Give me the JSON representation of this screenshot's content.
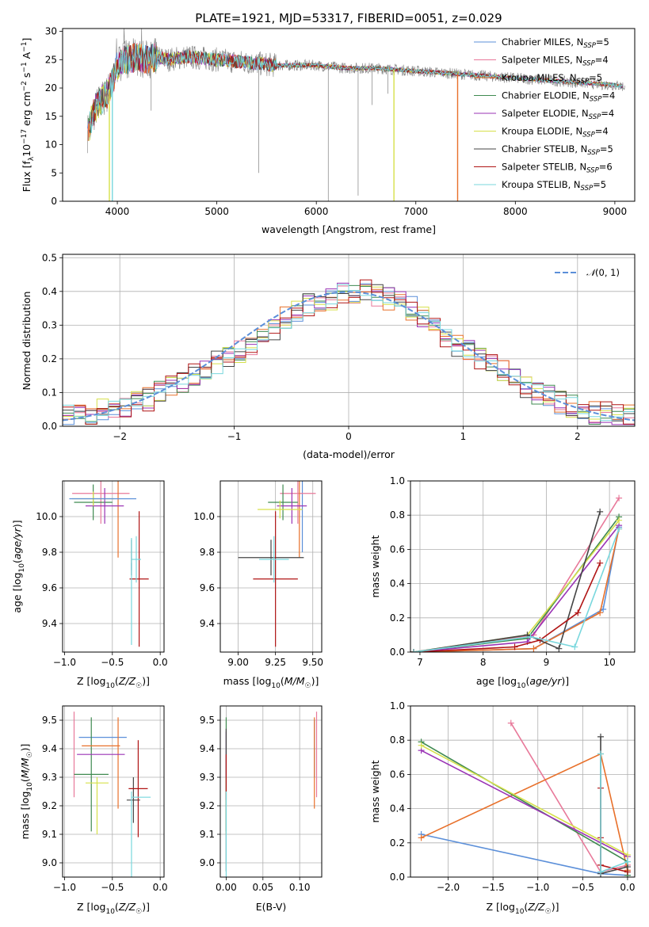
{
  "figure_title": "PLATE=1921, MJD=53317, FIBERID=0051, z=0.029",
  "colors": {
    "Chabrier MILES": "#5b8fd9",
    "Salpeter MILES": "#e8799a",
    "Kroupa MILES": "#e8702a",
    "Chabrier ELODIE": "#3f8a50",
    "Salpeter ELODIE": "#9a33b5",
    "Kroupa ELODIE": "#d6e04a",
    "Chabrier STELIB": "#444444",
    "Salpeter STELIB": "#b01515",
    "Kroupa STELIB": "#79d7dd",
    "data": "#808080",
    "normal": "#5b8fd9"
  },
  "chart_data": [
    {
      "id": "spectrum",
      "type": "line",
      "title": "PLATE=1921, MJD=53317, FIBERID=0051, z=0.029",
      "xlabel": "wavelength [Angstrom, rest frame]",
      "ylabel_parts": [
        "Flux [f",
        "λ",
        "10",
        "−17",
        " erg cm",
        "−2",
        " s",
        "−1",
        " A",
        "−1",
        "]"
      ],
      "xlim": [
        3450,
        9200
      ],
      "ylim": [
        0,
        30.5
      ],
      "xticks": [
        4000,
        5000,
        6000,
        7000,
        8000,
        9000
      ],
      "yticks": [
        0,
        5,
        10,
        15,
        20,
        25,
        30
      ],
      "legend_position": "top-right",
      "legend": [
        {
          "name": "Chabrier MILES",
          "nssp": "5",
          "color_key": "Chabrier MILES"
        },
        {
          "name": "Salpeter MILES",
          "nssp": "4",
          "color_key": "Salpeter MILES"
        },
        {
          "name": "Kroupa MILES",
          "nssp": "5",
          "color_key": "Kroupa MILES"
        },
        {
          "name": "Chabrier ELODIE",
          "nssp": "4",
          "color_key": "Chabrier ELODIE"
        },
        {
          "name": "Salpeter ELODIE",
          "nssp": "4",
          "color_key": "Salpeter ELODIE"
        },
        {
          "name": "Kroupa ELODIE",
          "nssp": "4",
          "color_key": "Kroupa ELODIE"
        },
        {
          "name": "Chabrier STELIB",
          "nssp": "5",
          "color_key": "Chabrier STELIB"
        },
        {
          "name": "Salpeter STELIB",
          "nssp": "6",
          "color_key": "Salpeter STELIB"
        },
        {
          "name": "Kroupa STELIB",
          "nssp": "5",
          "color_key": "Kroupa STELIB"
        }
      ],
      "continuum": [
        [
          3700,
          12
        ],
        [
          3750,
          15
        ],
        [
          3800,
          17
        ],
        [
          3850,
          18
        ],
        [
          3900,
          19
        ],
        [
          3950,
          21
        ],
        [
          4000,
          24
        ],
        [
          4050,
          25
        ],
        [
          4100,
          25
        ],
        [
          4200,
          25.5
        ],
        [
          4300,
          25
        ],
        [
          4400,
          25.5
        ],
        [
          4500,
          25
        ],
        [
          4700,
          25.5
        ],
        [
          5000,
          25
        ],
        [
          5300,
          24.5
        ],
        [
          5600,
          24
        ],
        [
          6000,
          24
        ],
        [
          6300,
          23.5
        ],
        [
          6600,
          23.5
        ],
        [
          7000,
          23
        ],
        [
          7400,
          22.5
        ],
        [
          7800,
          22
        ],
        [
          8200,
          21.5
        ],
        [
          8600,
          21
        ],
        [
          9000,
          20.5
        ],
        [
          9200,
          20
        ]
      ],
      "spikes": [
        [
          3920,
          0
        ],
        [
          4340,
          16
        ],
        [
          5420,
          5
        ],
        [
          6120,
          0
        ],
        [
          6420,
          1
        ],
        [
          6780,
          0
        ],
        [
          7420,
          0
        ],
        [
          6560,
          17
        ],
        [
          6720,
          19
        ]
      ],
      "model_dropouts": [
        [
          3920,
          "Kroupa ELODIE"
        ],
        [
          3950,
          "Kroupa STELIB"
        ],
        [
          6780,
          "Kroupa ELODIE"
        ],
        [
          7420,
          "Kroupa MILES"
        ]
      ]
    },
    {
      "id": "residuals",
      "type": "histogram",
      "xlabel": "(data-model)/error",
      "ylabel": "Normed distribution",
      "xlim": [
        -2.5,
        2.5
      ],
      "ylim": [
        0,
        0.51
      ],
      "xticks": [
        -2,
        -1,
        0,
        1,
        2
      ],
      "yticks": [
        0.0,
        0.1,
        0.2,
        0.3,
        0.4,
        0.5
      ],
      "legend_position": "top-right",
      "legend_label_prefix": "𝒩",
      "legend_label_args": "(0, 1)",
      "bin_edges_start": -2.5,
      "bin_width": 0.1,
      "base_values": [
        0.03,
        0.03,
        0.04,
        0.05,
        0.05,
        0.06,
        0.07,
        0.08,
        0.1,
        0.12,
        0.13,
        0.15,
        0.17,
        0.19,
        0.2,
        0.22,
        0.24,
        0.26,
        0.29,
        0.32,
        0.34,
        0.36,
        0.37,
        0.38,
        0.39,
        0.4,
        0.4,
        0.39,
        0.38,
        0.37,
        0.35,
        0.32,
        0.29,
        0.26,
        0.24,
        0.22,
        0.2,
        0.18,
        0.16,
        0.14,
        0.12,
        0.1,
        0.09,
        0.07,
        0.06,
        0.05,
        0.04,
        0.04,
        0.03,
        0.03
      ]
    },
    {
      "id": "age-vs-Z",
      "type": "errorbar",
      "xlabel_parts": [
        "Z [log",
        "10",
        "(",
        "Z/Z",
        "☉",
        ")]"
      ],
      "ylabel_parts": [
        "age  [log",
        "10",
        "(",
        "age/yr",
        ")]"
      ],
      "xlim": [
        -1.02,
        0.04
      ],
      "ylim": [
        9.24,
        10.2
      ],
      "xticks": [
        -1.0,
        -0.5,
        0.0
      ],
      "yticks": [
        9.4,
        9.6,
        9.8,
        10.0
      ],
      "points": [
        {
          "c": "Chabrier MILES",
          "x": -0.3,
          "xe": 0.0,
          "y": 9.72,
          "ye": 0.02
        },
        {
          "c": "Salpeter MILES",
          "x": -0.62,
          "xe": 0.3,
          "y": 10.13,
          "ye": 0.17
        },
        {
          "c": "Kroupa MILES",
          "x": -0.44,
          "xe": 0.0,
          "y": 10.02,
          "ye": 0.25
        },
        {
          "c": "Chabrier ELODIE",
          "x": -0.7,
          "xe": 0.2,
          "y": 10.08,
          "ye": 0.1
        },
        {
          "c": "Salpeter ELODIE",
          "x": -0.58,
          "xe": 0.2,
          "y": 10.06,
          "ye": 0.1
        },
        {
          "c": "Kroupa ELODIE",
          "x": -0.7,
          "xe": 0.22,
          "y": 10.1,
          "ye": 0.04
        },
        {
          "c": "Chabrier STELIB",
          "x": -0.3,
          "xe": 0.0,
          "y": 9.77,
          "ye": 0.1
        },
        {
          "c": "Salpeter STELIB",
          "x": -0.22,
          "xe": 0.1,
          "y": 9.65,
          "ye": 0.38
        },
        {
          "c": "Kroupa STELIB",
          "x": -0.25,
          "xe": 0.05,
          "y": 9.76,
          "ye": 0.13
        },
        {
          "c": "Chabrier MILES",
          "x": -0.6,
          "xe": 0.35,
          "y": 10.1,
          "ye": 0.0
        },
        {
          "c": "Kroupa STELIB",
          "x": -0.3,
          "xe": 0.0,
          "y": 9.58,
          "ye": 0.3
        }
      ]
    },
    {
      "id": "age-vs-mass",
      "type": "errorbar",
      "xlabel_parts": [
        "mass [log",
        "10",
        "(",
        "M/M",
        "☉",
        ")]"
      ],
      "xlim": [
        8.88,
        9.56
      ],
      "ylim": [
        9.24,
        10.2
      ],
      "xticks": [
        9.0,
        9.25,
        9.5
      ],
      "yticks": [
        9.4,
        9.6,
        9.8,
        10.0
      ],
      "points": [
        {
          "c": "Chabrier MILES",
          "x": 9.43,
          "xe": 0.0,
          "y": 10.05,
          "ye": 0.25
        },
        {
          "c": "Salpeter MILES",
          "x": 9.4,
          "xe": 0.12,
          "y": 10.13,
          "ye": 0.17
        },
        {
          "c": "Kroupa MILES",
          "x": 9.41,
          "xe": 0.0,
          "y": 10.02,
          "ye": 0.25
        },
        {
          "c": "Chabrier ELODIE",
          "x": 9.3,
          "xe": 0.1,
          "y": 10.08,
          "ye": 0.1
        },
        {
          "c": "Salpeter ELODIE",
          "x": 9.36,
          "xe": 0.1,
          "y": 10.06,
          "ye": 0.1
        },
        {
          "c": "Kroupa ELODIE",
          "x": 9.28,
          "xe": 0.15,
          "y": 10.04,
          "ye": 0.05
        },
        {
          "c": "Chabrier STELIB",
          "x": 9.22,
          "xe": 0.22,
          "y": 9.77,
          "ye": 0.1
        },
        {
          "c": "Salpeter STELIB",
          "x": 9.25,
          "xe": 0.15,
          "y": 9.65,
          "ye": 0.38
        },
        {
          "c": "Kroupa STELIB",
          "x": 9.24,
          "xe": 0.1,
          "y": 9.76,
          "ye": 0.13
        }
      ]
    },
    {
      "id": "weight-vs-age",
      "type": "line",
      "xlabel_parts": [
        "age  [log",
        "10",
        "(",
        "age/yr",
        ")]"
      ],
      "ylabel": "mass weight",
      "xlim": [
        6.85,
        10.4
      ],
      "ylim": [
        0,
        1.0
      ],
      "xticks": [
        7,
        8,
        9,
        10
      ],
      "yticks": [
        0.0,
        0.2,
        0.4,
        0.6,
        0.8,
        1.0
      ],
      "series": [
        {
          "c": "Chabrier MILES",
          "x": [
            6.9,
            8.8,
            9.9,
            10.15
          ],
          "y": [
            0.0,
            0.02,
            0.25,
            0.73
          ]
        },
        {
          "c": "Salpeter MILES",
          "x": [
            6.9,
            8.8,
            10.15
          ],
          "y": [
            0.0,
            0.1,
            0.9
          ]
        },
        {
          "c": "Kroupa MILES",
          "x": [
            6.9,
            8.8,
            9.85,
            10.15
          ],
          "y": [
            0.0,
            0.02,
            0.23,
            0.72
          ]
        },
        {
          "c": "Chabrier ELODIE",
          "x": [
            6.9,
            8.7,
            10.15
          ],
          "y": [
            0.0,
            0.08,
            0.79
          ]
        },
        {
          "c": "Salpeter ELODIE",
          "x": [
            6.9,
            8.7,
            10.15
          ],
          "y": [
            0.0,
            0.06,
            0.74
          ]
        },
        {
          "c": "Kroupa ELODIE",
          "x": [
            6.9,
            8.7,
            10.15
          ],
          "y": [
            0.0,
            0.1,
            0.77
          ]
        },
        {
          "c": "Chabrier STELIB",
          "x": [
            6.9,
            8.7,
            9.2,
            9.85
          ],
          "y": [
            0.0,
            0.1,
            0.02,
            0.82
          ]
        },
        {
          "c": "Salpeter STELIB",
          "x": [
            6.9,
            8.5,
            8.9,
            9.5,
            9.85
          ],
          "y": [
            0.0,
            0.03,
            0.07,
            0.23,
            0.52
          ]
        },
        {
          "c": "Kroupa STELIB",
          "x": [
            6.9,
            8.75,
            9.45,
            10.15
          ],
          "y": [
            0.0,
            0.09,
            0.03,
            0.72
          ]
        }
      ]
    },
    {
      "id": "mass-vs-Z",
      "type": "errorbar",
      "xlabel_parts": [
        "Z [log",
        "10",
        "(",
        "Z/Z",
        "☉",
        ")]"
      ],
      "ylabel_parts": [
        "mass [log",
        "10",
        "(",
        "M/M",
        "☉",
        ")]"
      ],
      "xlim": [
        -1.02,
        0.04
      ],
      "ylim": [
        8.95,
        9.55
      ],
      "xticks": [
        -1.0,
        -0.5,
        0.0
      ],
      "yticks": [
        9.0,
        9.1,
        9.2,
        9.3,
        9.4,
        9.5
      ],
      "points": [
        {
          "c": "Chabrier MILES",
          "x": -0.6,
          "xe": 0.25,
          "y": 9.44,
          "ye": 0.0
        },
        {
          "c": "Salpeter MILES",
          "x": -0.9,
          "xe": 0.0,
          "y": 9.38,
          "ye": 0.15
        },
        {
          "c": "Kroupa MILES",
          "x": -0.44,
          "xe": 0.0,
          "y": 9.35,
          "ye": 0.16
        },
        {
          "c": "Chabrier ELODIE",
          "x": -0.72,
          "xe": 0.18,
          "y": 9.31,
          "ye": 0.2
        },
        {
          "c": "Salpeter ELODIE",
          "x": -0.62,
          "xe": 0.25,
          "y": 9.38,
          "ye": 0.0
        },
        {
          "c": "Kroupa ELODIE",
          "x": -0.66,
          "xe": 0.12,
          "y": 9.28,
          "ye": 0.0
        },
        {
          "c": "Chabrier STELIB",
          "x": -0.28,
          "xe": 0.07,
          "y": 9.22,
          "ye": 0.08
        },
        {
          "c": "Salpeter STELIB",
          "x": -0.23,
          "xe": 0.1,
          "y": 9.26,
          "ye": 0.17
        },
        {
          "c": "Kroupa STELIB",
          "x": -0.2,
          "xe": 0.1,
          "y": 9.23,
          "ye": 0.0
        },
        {
          "c": "Kroupa MILES",
          "x": -0.62,
          "xe": 0.2,
          "y": 9.41,
          "ye": 0.0
        },
        {
          "c": "Kroupa ELODIE",
          "x": -0.66,
          "xe": 0.0,
          "y": 9.2,
          "ye": 0.1
        },
        {
          "c": "Kroupa STELIB",
          "x": -0.3,
          "xe": 0.0,
          "y": 9.1,
          "ye": 0.15
        }
      ]
    },
    {
      "id": "mass-vs-EBV",
      "type": "errorbar",
      "xlabel": "E(B-V)",
      "xlim": [
        -0.008,
        0.13
      ],
      "ylim": [
        8.95,
        9.55
      ],
      "xticks": [
        0.0,
        0.05,
        0.1
      ],
      "yticks": [
        9.0,
        9.1,
        9.2,
        9.3,
        9.4,
        9.5
      ],
      "points": [
        {
          "c": "Chabrier MILES",
          "x": 0.12,
          "xe": 0.0,
          "y": 9.4,
          "ye": 0.1
        },
        {
          "c": "Salpeter MILES",
          "x": 0.123,
          "xe": 0.0,
          "y": 9.38,
          "ye": 0.15
        },
        {
          "c": "Kroupa MILES",
          "x": 0.12,
          "xe": 0.0,
          "y": 9.35,
          "ye": 0.16
        },
        {
          "c": "Chabrier ELODIE",
          "x": 0.0,
          "xe": 0.0,
          "y": 9.31,
          "ye": 0.2
        },
        {
          "c": "Salpeter ELODIE",
          "x": 0.0,
          "xe": 0.0,
          "y": 9.38,
          "ye": 0.08
        },
        {
          "c": "Kroupa ELODIE",
          "x": 0.0,
          "xe": 0.0,
          "y": 9.2,
          "ye": 0.1
        },
        {
          "c": "Chabrier STELIB",
          "x": 0.0,
          "xe": 0.0,
          "y": 9.22,
          "ye": 0.25
        },
        {
          "c": "Salpeter STELIB",
          "x": 0.0,
          "xe": 0.0,
          "y": 9.3,
          "ye": 0.08
        },
        {
          "c": "Kroupa STELIB",
          "x": 0.0,
          "xe": 0.0,
          "y": 9.1,
          "ye": 0.15
        }
      ]
    },
    {
      "id": "weight-vs-Z",
      "type": "line",
      "xlabel_parts": [
        "Z [log",
        "10",
        "(",
        "Z/Z",
        "☉",
        ")]"
      ],
      "ylabel": "mass weight",
      "xlim": [
        -2.42,
        0.08
      ],
      "ylim": [
        0,
        1.0
      ],
      "xticks": [
        -2.0,
        -1.5,
        -1.0,
        -0.5,
        0.0
      ],
      "yticks": [
        0.0,
        0.2,
        0.4,
        0.6,
        0.8,
        1.0
      ],
      "series": [
        {
          "c": "Chabrier MILES",
          "x": [
            -2.3,
            -0.3,
            0.0
          ],
          "y": [
            0.25,
            0.02,
            0.01
          ]
        },
        {
          "c": "Salpeter MILES",
          "x": [
            -1.3,
            -0.3,
            0.0
          ],
          "y": [
            0.9,
            0.03,
            0.07
          ]
        },
        {
          "c": "Kroupa MILES",
          "x": [
            -2.3,
            -0.3,
            0.0
          ],
          "y": [
            0.23,
            0.72,
            0.04
          ]
        },
        {
          "c": "Chabrier ELODIE",
          "x": [
            -2.3,
            0.0,
            0.0
          ],
          "y": [
            0.79,
            0.09,
            0.01
          ]
        },
        {
          "c": "Salpeter ELODIE",
          "x": [
            -2.3,
            0.0
          ],
          "y": [
            0.74,
            0.12
          ]
        },
        {
          "c": "Kroupa ELODIE",
          "x": [
            -2.3,
            0.0
          ],
          "y": [
            0.77,
            0.13
          ]
        },
        {
          "c": "Chabrier STELIB",
          "x": [
            -0.3,
            -0.3,
            0.0
          ],
          "y": [
            0.82,
            0.02,
            0.06
          ]
        },
        {
          "c": "Salpeter STELIB",
          "x": [
            -0.3,
            -0.3,
            -0.3,
            0.0
          ],
          "y": [
            0.52,
            0.23,
            0.07,
            0.03
          ]
        },
        {
          "c": "Kroupa STELIB",
          "x": [
            -0.3,
            -0.3,
            0.0
          ],
          "y": [
            0.72,
            0.03,
            0.09
          ]
        }
      ]
    }
  ]
}
